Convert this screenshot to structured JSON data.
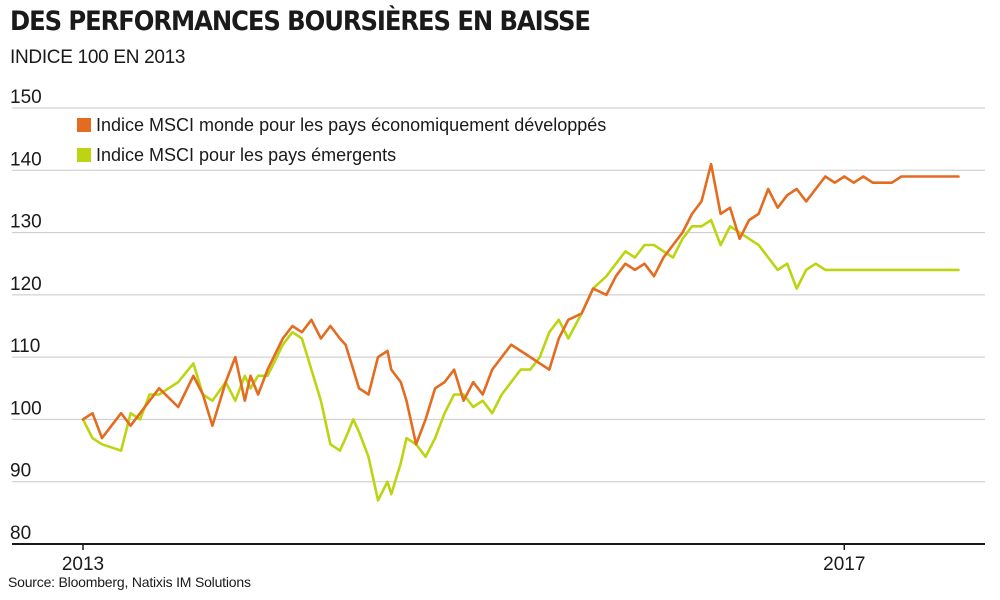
{
  "title": "DES PERFORMANCES BOURSIÈRES EN BAISSE",
  "subtitle": "INDICE 100 EN 2013",
  "source": "Source: Bloomberg, Natixis IM Solutions",
  "colors": {
    "developed": "#e36c21",
    "emerging": "#bdd413",
    "grid": "#c8c8c8",
    "axis": "#1a1a1a"
  },
  "chart_data": {
    "type": "line",
    "title": "DES PERFORMANCES BOURSIÈRES EN BAISSE",
    "ylim": [
      80,
      150
    ],
    "y_ticks": [
      "80",
      "90",
      "100",
      "110",
      "120",
      "130",
      "140",
      "150"
    ],
    "x_ticks": [
      {
        "label": "2013",
        "x": 2013.0
      },
      {
        "label": "2017",
        "x": 2017.0
      }
    ],
    "xlim": [
      2013.0,
      2017.65
    ],
    "grid": true,
    "legend_position": "top-left",
    "series": [
      {
        "name": "Indice MSCI monde pour les pays économiquement développés",
        "color": "#e36c21",
        "x": [
          2013.0,
          2013.05,
          2013.1,
          2013.2,
          2013.25,
          2013.3,
          2013.35,
          2013.4,
          2013.5,
          2013.58,
          2013.63,
          2013.68,
          2013.75,
          2013.8,
          2013.85,
          2013.88,
          2013.92,
          2013.97,
          2014.05,
          2014.1,
          2014.15,
          2014.2,
          2014.25,
          2014.3,
          2014.35,
          2014.38,
          2014.42,
          2014.45,
          2014.5,
          2014.55,
          2014.6,
          2014.62,
          2014.67,
          2014.7,
          2014.75,
          2014.8,
          2014.85,
          2014.9,
          2014.95,
          2015.0,
          2015.05,
          2015.1,
          2015.15,
          2015.2,
          2015.25,
          2015.3,
          2015.35,
          2015.4,
          2015.45,
          2015.5,
          2015.55,
          2015.62,
          2015.68,
          2015.75,
          2015.8,
          2015.85,
          2015.9,
          2015.95,
          2016.0,
          2016.05,
          2016.1,
          2016.15,
          2016.2,
          2016.25,
          2016.3,
          2016.35,
          2016.4,
          2016.45,
          2016.5,
          2016.55,
          2016.6,
          2016.65,
          2016.7,
          2016.75,
          2016.8,
          2016.85,
          2016.9,
          2016.95,
          2017.0,
          2017.05,
          2017.1,
          2017.15,
          2017.2,
          2017.25,
          2017.3,
          2017.35,
          2017.4,
          2017.45,
          2017.5,
          2017.55,
          2017.6
        ],
        "values": [
          100,
          101,
          97,
          101,
          99,
          101,
          103,
          105,
          102,
          107,
          104,
          99,
          106,
          110,
          103,
          107,
          104,
          108,
          113,
          115,
          114,
          116,
          113,
          115,
          113,
          112,
          108,
          105,
          104,
          110,
          111,
          108,
          106,
          103,
          96,
          100,
          105,
          106,
          108,
          103,
          106,
          104,
          108,
          110,
          112,
          111,
          110,
          109,
          108,
          113,
          116,
          117,
          121,
          120,
          123,
          125,
          124,
          125,
          123,
          126,
          128,
          130,
          133,
          135,
          141,
          133,
          134,
          129,
          132,
          133,
          137,
          134,
          136,
          137,
          135,
          137,
          139,
          138,
          139,
          138,
          139,
          138,
          138,
          138,
          139,
          139,
          139,
          139,
          139,
          139,
          139
        ]
      },
      {
        "name": "Indice MSCI pour les pays émergents",
        "color": "#bdd413",
        "x": [
          2013.0,
          2013.05,
          2013.1,
          2013.2,
          2013.25,
          2013.3,
          2013.35,
          2013.4,
          2013.5,
          2013.58,
          2013.63,
          2013.68,
          2013.75,
          2013.8,
          2013.85,
          2013.88,
          2013.92,
          2013.97,
          2014.05,
          2014.1,
          2014.15,
          2014.2,
          2014.25,
          2014.3,
          2014.35,
          2014.38,
          2014.42,
          2014.45,
          2014.5,
          2014.55,
          2014.6,
          2014.62,
          2014.67,
          2014.7,
          2014.75,
          2014.8,
          2014.85,
          2014.9,
          2014.95,
          2015.0,
          2015.05,
          2015.1,
          2015.15,
          2015.2,
          2015.25,
          2015.3,
          2015.35,
          2015.4,
          2015.45,
          2015.5,
          2015.55,
          2015.62,
          2015.68,
          2015.75,
          2015.8,
          2015.85,
          2015.9,
          2015.95,
          2016.0,
          2016.05,
          2016.1,
          2016.15,
          2016.2,
          2016.25,
          2016.3,
          2016.35,
          2016.4,
          2016.45,
          2016.5,
          2016.55,
          2016.6,
          2016.65,
          2016.7,
          2016.75,
          2016.8,
          2016.85,
          2016.9,
          2016.95,
          2017.0,
          2017.05,
          2017.1,
          2017.15,
          2017.2,
          2017.25,
          2017.3,
          2017.35,
          2017.4,
          2017.45,
          2017.5,
          2017.55,
          2017.6
        ],
        "values": [
          100,
          97,
          96,
          95,
          101,
          100,
          104,
          104,
          106,
          109,
          104,
          103,
          106,
          103,
          107,
          105,
          107,
          107,
          112,
          114,
          113,
          108,
          103,
          96,
          95,
          97,
          100,
          98,
          94,
          87,
          90,
          88,
          93,
          97,
          96,
          94,
          97,
          101,
          104,
          104,
          102,
          103,
          101,
          104,
          106,
          108,
          108,
          110,
          114,
          116,
          113,
          117,
          121,
          123,
          125,
          127,
          126,
          128,
          128,
          127,
          126,
          129,
          131,
          131,
          132,
          128,
          131,
          130,
          129,
          128,
          126,
          124,
          125,
          121,
          124,
          125,
          124,
          124,
          124,
          124,
          124,
          124,
          124,
          124,
          124,
          124,
          124,
          124,
          124,
          124,
          124
        ]
      }
    ]
  }
}
